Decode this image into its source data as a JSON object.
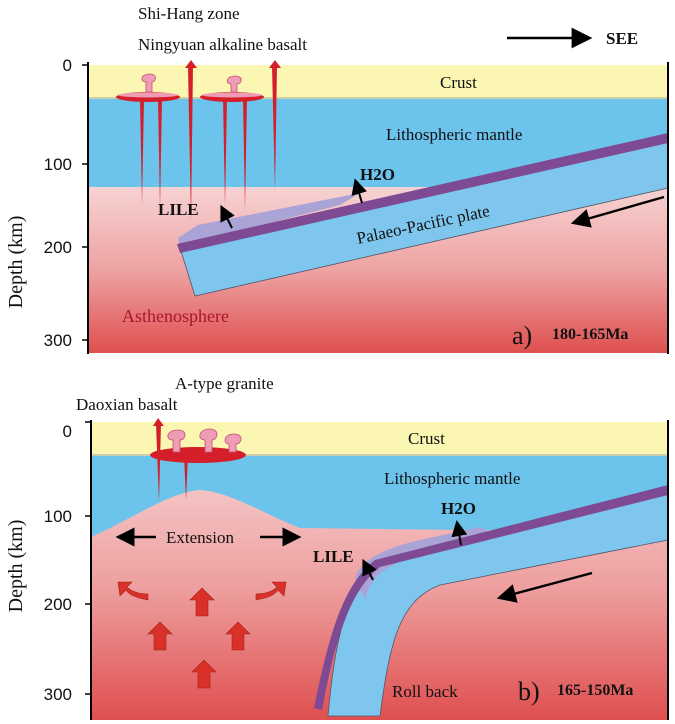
{
  "direction": {
    "label": "SEE"
  },
  "axis": {
    "title": "Depth (km)"
  },
  "panel_a": {
    "ticks": [
      "0",
      "100",
      "200",
      "300"
    ],
    "zone_label": "Shi-Hang zone",
    "basalt_label": "Ningyuan alkaline basalt",
    "crust": "Crust",
    "lithospheric_mantle": "Lithospheric mantle",
    "h2o": "H2O",
    "lile": "LILE",
    "plate": "Palaeo-Pacific plate",
    "asthenosphere": "Asthenosphere",
    "letter": "a)",
    "age": "180-165Ma"
  },
  "panel_b": {
    "ticks": [
      "0",
      "100",
      "200",
      "300"
    ],
    "granite_label": "A-type granite",
    "basalt_label": "Daoxian basalt",
    "crust": "Crust",
    "lithospheric_mantle": "Lithospheric mantle",
    "extension": "Extension",
    "h2o": "H2O",
    "lile": "LILE",
    "rollback": "Roll back",
    "letter": "b)",
    "age": "165-150Ma"
  },
  "colors": {
    "crust": "#fbf7b3",
    "lithosphere": "#6cc3ec",
    "slab": "#7ec6ee",
    "slab_top": "#7d4a93",
    "metasomatic": "#a9a3d6",
    "asthenosphere_top": "#f6c9c9",
    "asthenosphere_bottom": "#df5151",
    "magma": "#d41f2b",
    "pink_pluton": "#ef9db6"
  }
}
